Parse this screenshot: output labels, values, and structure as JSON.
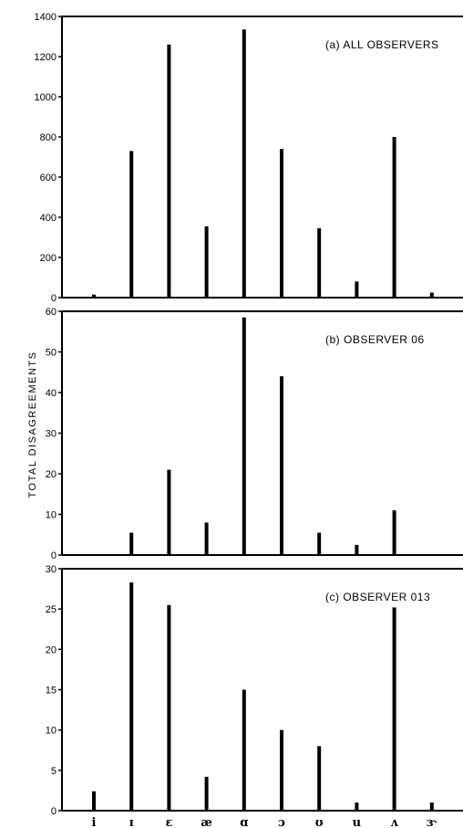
{
  "ylabel": "TOTAL DISAGREEMENTS",
  "categories": [
    "i",
    "ɪ",
    "ɛ",
    "æ",
    "ɑ",
    "ɔ",
    "ʊ",
    "u",
    "ʌ",
    "ɝ"
  ],
  "chart_data": [
    {
      "type": "bar",
      "title": "(a) ALL OBSERVERS",
      "categories": [
        "i",
        "ɪ",
        "ɛ",
        "æ",
        "ɑ",
        "ɔ",
        "ʊ",
        "u",
        "ʌ",
        "ɝ"
      ],
      "values": [
        15,
        730,
        1260,
        355,
        1335,
        740,
        345,
        80,
        800,
        25
      ],
      "ylim": [
        0,
        1400
      ],
      "yticks": [
        0,
        200,
        400,
        600,
        800,
        1000,
        1200,
        1400
      ],
      "ylabel": "TOTAL DISAGREEMENTS"
    },
    {
      "type": "bar",
      "title": "(b) OBSERVER 06",
      "categories": [
        "i",
        "ɪ",
        "ɛ",
        "æ",
        "ɑ",
        "ɔ",
        "ʊ",
        "u",
        "ʌ",
        "ɝ"
      ],
      "values": [
        0,
        5.5,
        21,
        8,
        58.5,
        44,
        5.5,
        2.5,
        11,
        0
      ],
      "ylim": [
        0,
        60
      ],
      "yticks": [
        0,
        10,
        20,
        30,
        40,
        50,
        60
      ],
      "ylabel": "TOTAL DISAGREEMENTS"
    },
    {
      "type": "bar",
      "title": "(c) OBSERVER 013",
      "categories": [
        "i",
        "ɪ",
        "ɛ",
        "æ",
        "ɑ",
        "ɔ",
        "ʊ",
        "u",
        "ʌ",
        "ɝ"
      ],
      "values": [
        2.4,
        28.3,
        25.5,
        4.2,
        15,
        10,
        8,
        1,
        25.2,
        1
      ],
      "ylim": [
        0,
        30
      ],
      "yticks": [
        0,
        5,
        10,
        15,
        20,
        25,
        30
      ],
      "ylabel": "TOTAL DISAGREEMENTS"
    }
  ]
}
